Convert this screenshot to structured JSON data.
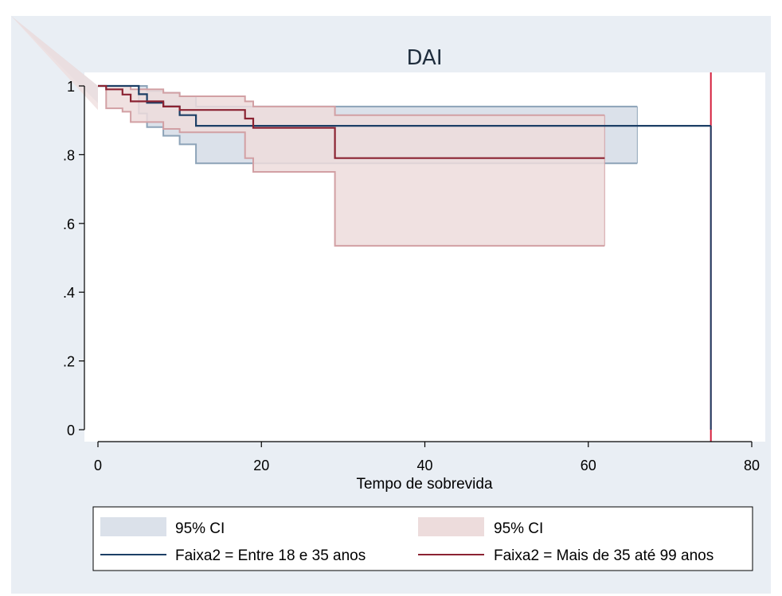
{
  "chart_data": {
    "type": "line",
    "title": "DAI",
    "xlabel": "Tempo de sobrevida",
    "ylabel": "",
    "xlim": [
      0,
      80
    ],
    "ylim": [
      0,
      1
    ],
    "x_ticks": [
      "0",
      "20",
      "40",
      "60",
      "80"
    ],
    "y_ticks": [
      "0",
      ".2",
      ".4",
      ".6",
      ".8",
      "1"
    ],
    "x_tick_values": [
      0,
      20,
      40,
      60,
      80
    ],
    "y_tick_values": [
      0,
      0.2,
      0.4,
      0.6,
      0.8,
      1
    ],
    "grid": false,
    "legend_position": "bottom",
    "colors": {
      "outer_background": "#e9eef4",
      "plot_background": "#ffffff",
      "series1_line": "#1c3f66",
      "series1_ci_fill": "#dbe1ea",
      "series1_ci_edge": "#8da3b8",
      "series2_line": "#8b2332",
      "series2_ci_fill": "#eddcdc",
      "series2_ci_edge": "#d2a0a4",
      "vline": "#d41e3c"
    },
    "vline_x": 75,
    "series": [
      {
        "name": "Faixa2 = Entre 18 e 35 anos",
        "x": [
          0,
          5,
          6,
          8,
          10,
          12,
          75
        ],
        "y": [
          1.0,
          0.976,
          0.951,
          0.94,
          0.915,
          0.884,
          0.884
        ],
        "ci_x": [
          0,
          5,
          6,
          8,
          10,
          12,
          66
        ],
        "ci_lower": [
          1.0,
          0.92,
          0.88,
          0.855,
          0.83,
          0.775,
          0.775
        ],
        "ci_upper": [
          1.0,
          1.0,
          0.985,
          0.98,
          0.97,
          0.94,
          0.94
        ],
        "drop_to_zero_x": 75
      },
      {
        "name": "Faixa2 = Mais de 35 até 99 anos",
        "x": [
          0,
          1,
          3,
          4,
          8,
          10,
          18,
          19,
          29,
          62
        ],
        "y": [
          1.0,
          0.99,
          0.975,
          0.955,
          0.94,
          0.93,
          0.905,
          0.878,
          0.79,
          0.79
        ],
        "ci_x": [
          0,
          1,
          3,
          4,
          8,
          10,
          18,
          19,
          29,
          62
        ],
        "ci_lower": [
          1.0,
          0.935,
          0.925,
          0.895,
          0.875,
          0.865,
          0.79,
          0.75,
          0.535,
          0.535
        ],
        "ci_upper": [
          1.0,
          1.0,
          1.0,
          0.99,
          0.98,
          0.97,
          0.955,
          0.94,
          0.915,
          0.915
        ]
      }
    ],
    "legend": [
      {
        "kind": "area",
        "label": "95% CI",
        "series": 0
      },
      {
        "kind": "area",
        "label": "95% CI",
        "series": 1
      },
      {
        "kind": "line",
        "label": "Faixa2 = Entre 18 e 35 anos",
        "series": 0
      },
      {
        "kind": "line",
        "label": "Faixa2 = Mais de 35 até 99 anos",
        "series": 1
      }
    ]
  }
}
